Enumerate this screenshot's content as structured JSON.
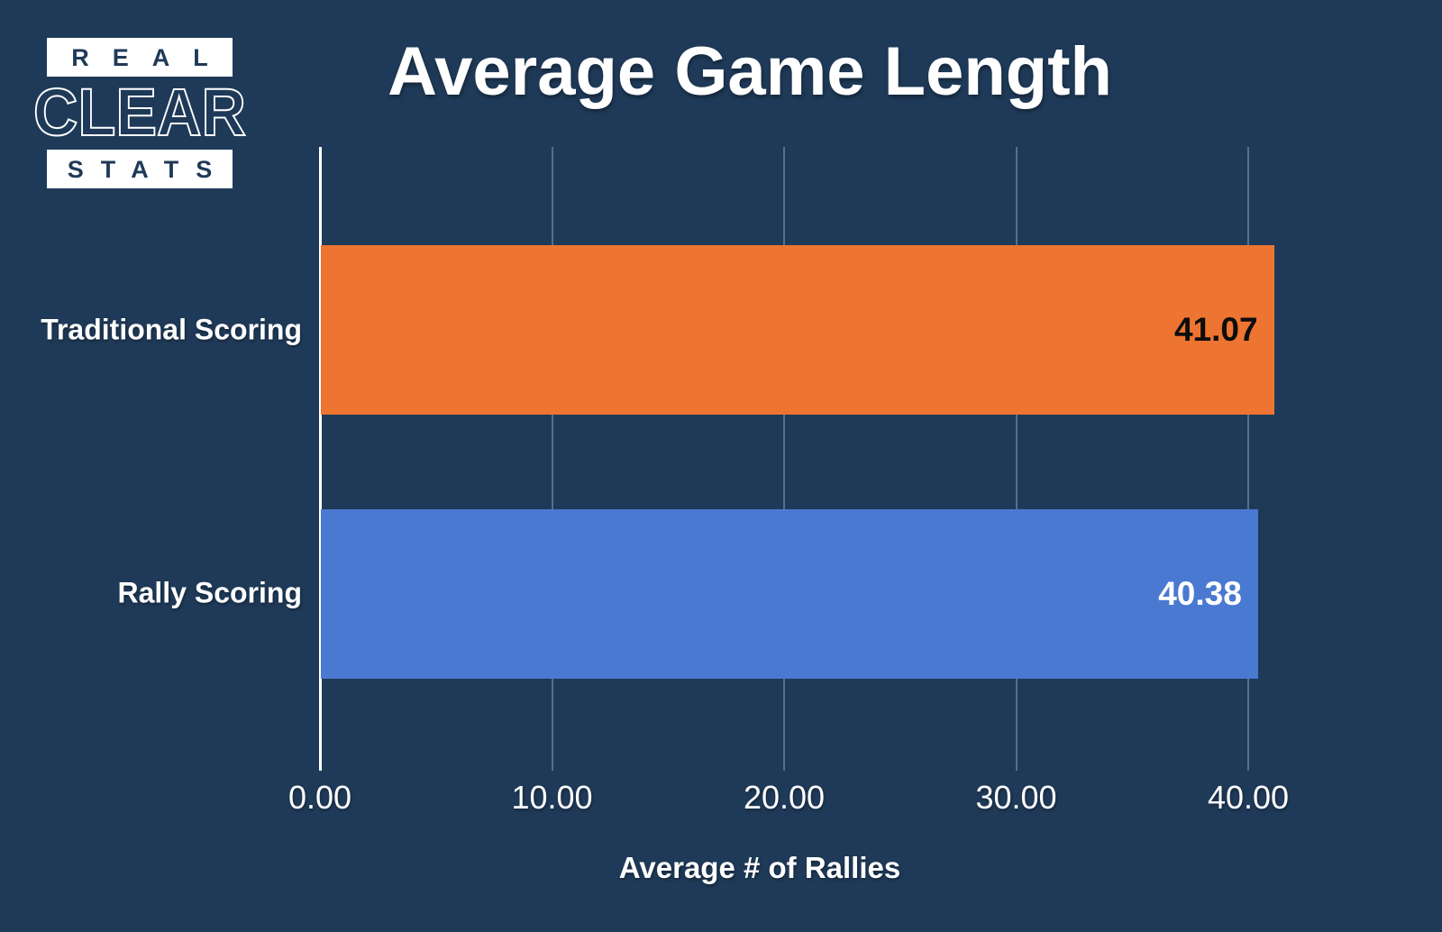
{
  "page": {
    "background_color": "#1f3a58"
  },
  "logo": {
    "line1": "REAL",
    "line2": "CLEAR",
    "line3": "STATS",
    "box_background": "#ffffff",
    "text_color": "#1f3a58"
  },
  "chart_data": {
    "type": "bar",
    "orientation": "horizontal",
    "title": "Average Game Length",
    "xlabel": "Average # of Rallies",
    "ylabel": "",
    "categories": [
      "Traditional Scoring",
      "Rally Scoring"
    ],
    "values": [
      41.07,
      40.38
    ],
    "value_labels": [
      "41.07",
      "40.38"
    ],
    "bar_colors": [
      "#ed7431",
      "#4a79d2"
    ],
    "value_label_colors": [
      "#0d0d0d",
      "#ffffff"
    ],
    "xlim": [
      0,
      43.1
    ],
    "xticks": [
      0,
      10,
      20,
      30,
      40
    ],
    "xtick_labels": [
      "0.00",
      "10.00",
      "20.00",
      "30.00",
      "40.00"
    ],
    "grid": "vertical gridlines on, horizontal off",
    "gridline_color": "#53718e",
    "axis_line_color": "#ffffff",
    "legend_position": "none",
    "background_color": "#1f3a58",
    "title_color": "#ffffff",
    "tick_label_color": "#ffffff"
  }
}
